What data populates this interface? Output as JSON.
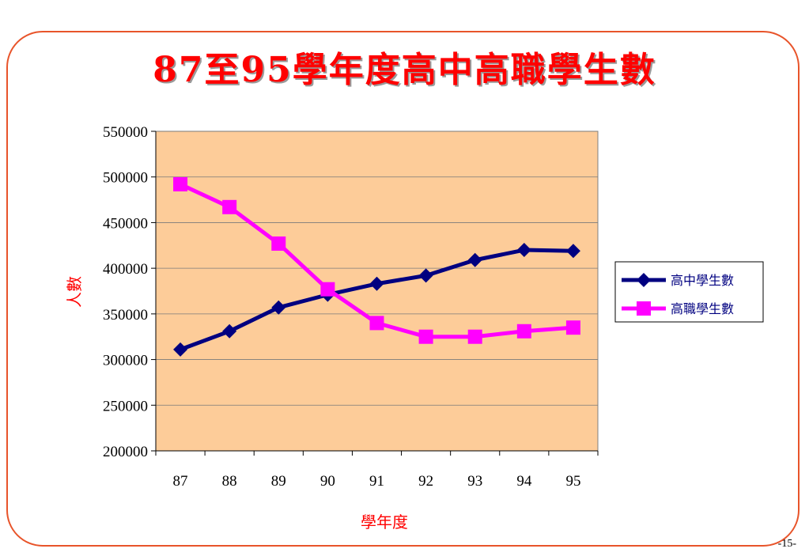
{
  "page": {
    "page_number": "-15-"
  },
  "chart_data": {
    "type": "line",
    "title": "87至95學年度高中高職學生數",
    "xlabel": "學年度",
    "ylabel": "人數",
    "categories": [
      "87",
      "88",
      "89",
      "90",
      "91",
      "92",
      "93",
      "94",
      "95"
    ],
    "ylim": [
      200000,
      550000
    ],
    "yticks": [
      "550000",
      "500000",
      "450000",
      "400000",
      "350000",
      "300000",
      "250000",
      "200000"
    ],
    "ytick_values": [
      550000,
      500000,
      450000,
      400000,
      350000,
      300000,
      250000,
      200000
    ],
    "grid": true,
    "legend_position": "right",
    "plot_background": "#fdcc99",
    "series": [
      {
        "name": "高中學生數",
        "color": "#000080",
        "marker": "diamond",
        "values": [
          311000,
          331000,
          357000,
          371000,
          383000,
          392000,
          409000,
          420000,
          419000
        ]
      },
      {
        "name": "高職學生數",
        "color": "#ff00ff",
        "marker": "square",
        "values": [
          492000,
          467000,
          427000,
          377000,
          340000,
          325000,
          325000,
          331000,
          335000
        ]
      }
    ]
  }
}
